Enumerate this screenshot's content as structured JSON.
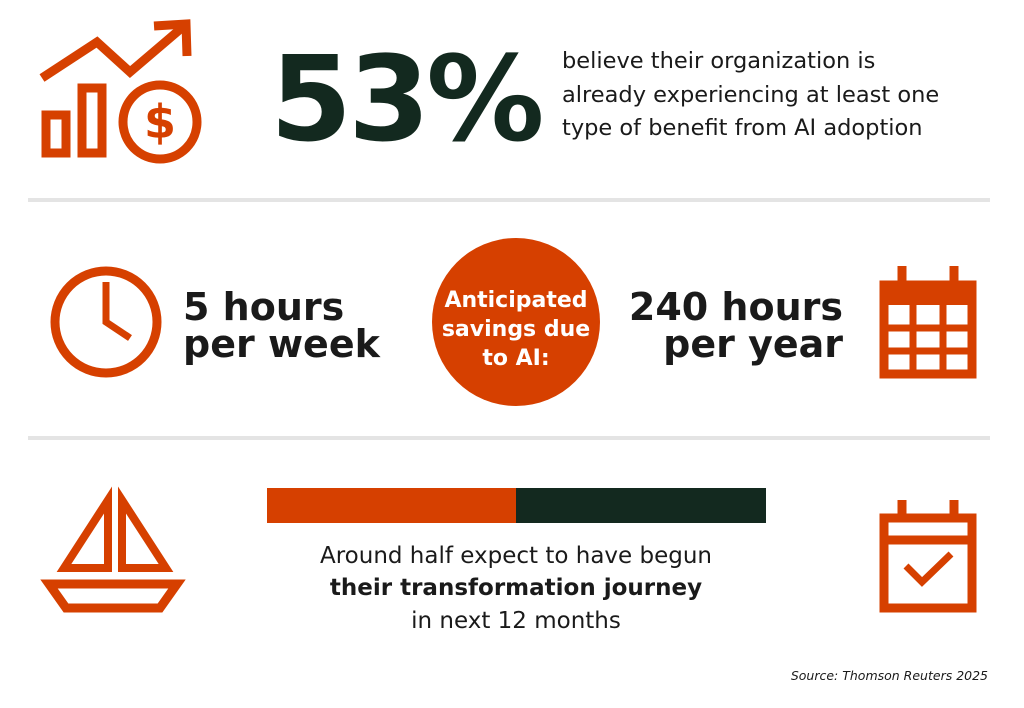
{
  "stat": {
    "value": "53%",
    "lines": [
      "believe their organization is",
      "already experiencing at least one",
      "type of benefit from AI adoption"
    ]
  },
  "savings": {
    "weekly": [
      "5 hours",
      "per week"
    ],
    "label": [
      "Anticipated",
      "savings due",
      "to AI:"
    ],
    "yearly": [
      "240 hours",
      "per year"
    ]
  },
  "journey": {
    "lines": [
      "Around half expect to have begun",
      "their transformation journey",
      "in next 12 months"
    ]
  },
  "source": "Source: Thomson Reuters 2025"
}
